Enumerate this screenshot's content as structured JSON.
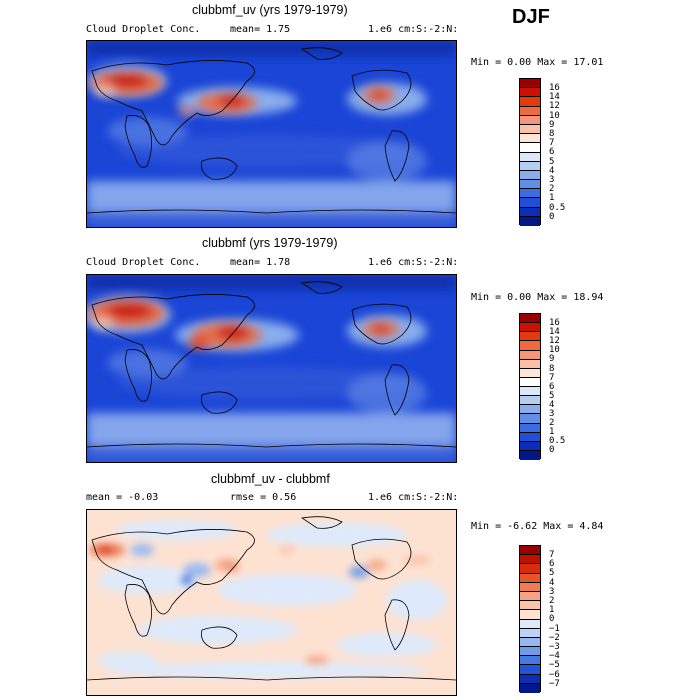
{
  "season": "DJF",
  "panels": [
    {
      "title": "clubbmf_uv (yrs 1979-1979)",
      "left_label": "Cloud Droplet Conc.",
      "center_label": "mean=   1.75",
      "right_label": "1.e6 cm:S:-2:N:",
      "minmax": "Min =   0.00 Max =  17.01",
      "ticks": [
        "16",
        "14",
        "12",
        "10",
        "9",
        "8",
        "7",
        "6",
        "5",
        "4",
        "3",
        "2",
        "1",
        "0.5",
        "0"
      ],
      "colors": [
        "#990000",
        "#cc1100",
        "#e53a10",
        "#ef6a40",
        "#f5967a",
        "#f9c2a8",
        "#fde6d4",
        "#ffffff",
        "#dce8fa",
        "#b4cdf3",
        "#8aaeec",
        "#6090e6",
        "#3a6ee0",
        "#1f4fd5",
        "#0b2eb8",
        "#001888"
      ]
    },
    {
      "title": "clubbmf (yrs 1979-1979)",
      "left_label": "Cloud Droplet Conc.",
      "center_label": "mean=   1.78",
      "right_label": "1.e6 cm:S:-2:N:",
      "minmax": "Min =   0.00 Max =  18.94",
      "ticks": [
        "16",
        "14",
        "12",
        "10",
        "9",
        "8",
        "7",
        "6",
        "5",
        "4",
        "3",
        "2",
        "1",
        "0.5",
        "0"
      ],
      "colors": [
        "#990000",
        "#cc1100",
        "#e53a10",
        "#ef6a40",
        "#f5967a",
        "#f9c2a8",
        "#fde6d4",
        "#ffffff",
        "#dce8fa",
        "#b4cdf3",
        "#8aaeec",
        "#6090e6",
        "#3a6ee0",
        "#1f4fd5",
        "#0b2eb8",
        "#001888"
      ]
    },
    {
      "title": "clubbmf_uv - clubbmf",
      "left_label": "mean =  -0.03",
      "center_label": "rmse =   0.56",
      "right_label": "1.e6 cm:S:-2:N:",
      "minmax": "Min =  -6.62 Max =   4.84",
      "ticks": [
        "7",
        "6",
        "5",
        "4",
        "3",
        "2",
        "1",
        "0",
        "−1",
        "−2",
        "−3",
        "−4",
        "−5",
        "−6",
        "−7"
      ],
      "colors": [
        "#990000",
        "#c01000",
        "#d92c0c",
        "#e8542a",
        "#ef7c55",
        "#f5a282",
        "#f9c4aa",
        "#fde2d2",
        "#deeafb",
        "#bcd3f6",
        "#96b8f0",
        "#6e9bea",
        "#4678e3",
        "#2554d8",
        "#0c30b5",
        "#001888"
      ]
    }
  ],
  "icons": [
    "world-map-icon"
  ]
}
